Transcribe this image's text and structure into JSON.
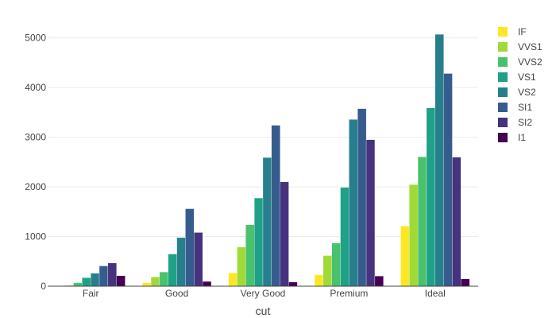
{
  "chart_data": {
    "type": "bar",
    "xlabel": "cut",
    "ylabel": "",
    "categories": [
      "Fair",
      "Good",
      "Very Good",
      "Premium",
      "Ideal"
    ],
    "ylim": [
      0,
      5250
    ],
    "yticks": [
      0,
      1000,
      2000,
      3000,
      4000,
      5000
    ],
    "grid": true,
    "legend_position": "right",
    "series": [
      {
        "name": "IF",
        "color": "#fde725",
        "values": [
          9,
          71,
          268,
          230,
          1212
        ]
      },
      {
        "name": "VVS1",
        "color": "#a0da39",
        "values": [
          17,
          186,
          789,
          616,
          2047
        ]
      },
      {
        "name": "VVS2",
        "color": "#4ac16d",
        "values": [
          69,
          286,
          1235,
          870,
          2606
        ]
      },
      {
        "name": "VS1",
        "color": "#1fa187",
        "values": [
          170,
          648,
          1775,
          1989,
          3589
        ]
      },
      {
        "name": "VS2",
        "color": "#277f8e",
        "values": [
          261,
          978,
          2591,
          3357,
          5071
        ]
      },
      {
        "name": "SI1",
        "color": "#365c8d",
        "values": [
          408,
          1560,
          3240,
          3575,
          4282
        ]
      },
      {
        "name": "SI2",
        "color": "#46327e",
        "values": [
          466,
          1081,
          2100,
          2949,
          2598
        ]
      },
      {
        "name": "I1",
        "color": "#440154",
        "values": [
          210,
          96,
          84,
          205,
          146
        ]
      }
    ]
  }
}
